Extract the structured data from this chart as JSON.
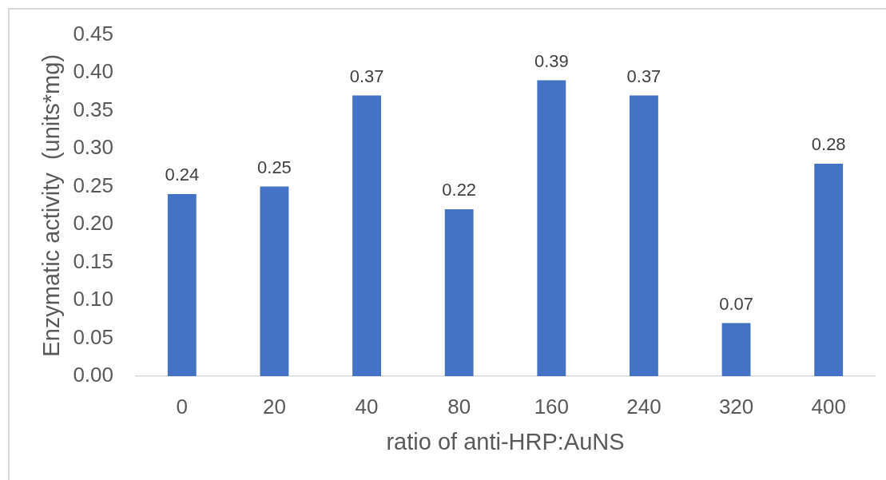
{
  "chart_data": {
    "type": "bar",
    "xlabel": "ratio of anti-HRP:AuNS",
    "ylabel": "Enzymatic activity  (units*mg)",
    "categories": [
      "0",
      "20",
      "40",
      "80",
      "160",
      "240",
      "320",
      "400"
    ],
    "values": [
      0.24,
      0.25,
      0.37,
      0.22,
      0.39,
      0.37,
      0.07,
      0.28
    ],
    "color": "#4472c4",
    "ylim": [
      0,
      0.45
    ],
    "yticks": [
      {
        "value": 0,
        "label": "0.00"
      },
      {
        "value": 0.05,
        "label": "0.05"
      },
      {
        "value": 0.1,
        "label": "0.10"
      },
      {
        "value": 0.15,
        "label": "0.15"
      },
      {
        "value": 0.2,
        "label": "0.20"
      },
      {
        "value": 0.25,
        "label": "0.25"
      },
      {
        "value": 0.3,
        "label": "0.30"
      },
      {
        "value": 0.35,
        "label": "0.35"
      },
      {
        "value": 0.4,
        "label": "0.40"
      },
      {
        "value": 0.45,
        "label": "0.45"
      }
    ],
    "grid": false,
    "legend": false,
    "data_labels": true
  }
}
